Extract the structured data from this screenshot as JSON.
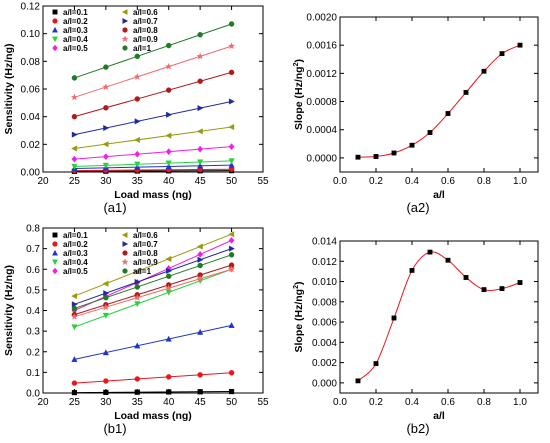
{
  "chart_data": [
    {
      "panel": "a1",
      "caption": "(a1)",
      "type": "scatter",
      "xlabel": "Load mass (ng)",
      "ylabel": "Sensitivity (Hz/ng)",
      "xlim": [
        20,
        55
      ],
      "ylim": [
        0,
        0.12
      ],
      "xticks": [
        "20",
        "25",
        "30",
        "35",
        "40",
        "45",
        "50",
        "55"
      ],
      "yticks": [
        "0.00",
        "0.02",
        "0.04",
        "0.06",
        "0.08",
        "0.10",
        "0.12"
      ],
      "legend_position": "top-left",
      "x": [
        25,
        30,
        35,
        40,
        45,
        50
      ],
      "series": [
        {
          "name": "a/l=0.1",
          "color": "#000000",
          "marker": "square",
          "fit": true,
          "values": [
            0.0005,
            0.0006,
            0.0007,
            0.0008,
            0.0009,
            0.001
          ]
        },
        {
          "name": "a/l=0.2",
          "color": "#e8161d",
          "marker": "circle",
          "fit": true,
          "values": [
            0.001,
            0.0012,
            0.0014,
            0.0016,
            0.0018,
            0.002
          ]
        },
        {
          "name": "a/l=0.3",
          "color": "#1f34c9",
          "marker": "triangle-up",
          "fit": true,
          "values": [
            0.0025,
            0.003,
            0.0035,
            0.004,
            0.0045,
            0.005
          ]
        },
        {
          "name": "a/l=0.4",
          "color": "#27d33b",
          "marker": "triangle-down",
          "fit": true,
          "values": [
            0.004,
            0.0048,
            0.0056,
            0.0064,
            0.0072,
            0.008
          ]
        },
        {
          "name": "a/l=0.5",
          "color": "#f21ee3",
          "marker": "diamond",
          "fit": true,
          "values": [
            0.0093,
            0.0111,
            0.0129,
            0.0147,
            0.0165,
            0.0183
          ]
        },
        {
          "name": "a/l=0.6",
          "color": "#9a9a0c",
          "marker": "triangle-left",
          "fit": true,
          "values": [
            0.017,
            0.0201,
            0.0232,
            0.0263,
            0.0294,
            0.0325
          ]
        },
        {
          "name": "a/l=0.7",
          "color": "#1f2a9e",
          "marker": "triangle-right",
          "fit": true,
          "values": [
            0.027,
            0.0318,
            0.0366,
            0.0414,
            0.0462,
            0.051
          ]
        },
        {
          "name": "a/l=0.8",
          "color": "#b01a1a",
          "marker": "circle",
          "fit": true,
          "values": [
            0.04,
            0.0464,
            0.0528,
            0.0592,
            0.0656,
            0.072
          ]
        },
        {
          "name": "a/l=0.9",
          "color": "#f26b6b",
          "marker": "star",
          "fit": true,
          "values": [
            0.054,
            0.0614,
            0.0688,
            0.0762,
            0.0836,
            0.091
          ]
        },
        {
          "name": "a/l=1",
          "color": "#1e7a25",
          "marker": "circle",
          "fit": true,
          "values": [
            0.068,
            0.0758,
            0.0836,
            0.0914,
            0.0992,
            0.107
          ]
        }
      ]
    },
    {
      "panel": "a2",
      "caption": "(a2)",
      "type": "line",
      "xlabel": "a/l",
      "ylabel": "Slope (Hz/ng",
      "ylabel_sup": "2",
      "ylabel_end": ")",
      "xlim": [
        0.0,
        1.1
      ],
      "ylim": [
        -0.0002,
        0.002
      ],
      "xticks": [
        "0.0",
        "0.2",
        "0.4",
        "0.6",
        "0.8",
        "1.0"
      ],
      "xtick_values": [
        0.0,
        0.2,
        0.4,
        0.6,
        0.8,
        1.0
      ],
      "yticks": [
        "0.0000",
        "0.0004",
        "0.0008",
        "0.0012",
        "0.0016",
        "0.0020"
      ],
      "ytick_values": [
        0.0,
        0.0004,
        0.0008,
        0.0012,
        0.0016,
        0.002
      ],
      "x": [
        0.1,
        0.2,
        0.3,
        0.4,
        0.5,
        0.6,
        0.7,
        0.8,
        0.9,
        1.0
      ],
      "series": [
        {
          "color": "#e8161d",
          "marker": "square",
          "values": [
            1e-05,
            2e-05,
            7e-05,
            0.00018,
            0.00036,
            0.00063,
            0.00093,
            0.00123,
            0.00148,
            0.0016
          ]
        }
      ]
    },
    {
      "panel": "b1",
      "caption": "(b1)",
      "type": "scatter",
      "xlabel": "Load mass (ng)",
      "ylabel": "Sensitivity (Hz/ng)",
      "xlim": [
        20,
        55
      ],
      "ylim": [
        0,
        0.8
      ],
      "xticks": [
        "20",
        "25",
        "30",
        "35",
        "40",
        "45",
        "50",
        "55"
      ],
      "yticks": [
        "0.0",
        "0.1",
        "0.2",
        "0.3",
        "0.4",
        "0.5",
        "0.6",
        "0.7",
        "0.8"
      ],
      "legend_position": "top-left",
      "x": [
        25,
        30,
        35,
        40,
        45,
        50
      ],
      "series": [
        {
          "name": "a/l=0.1",
          "color": "#000000",
          "marker": "square",
          "fit": true,
          "values": [
            0.002,
            0.003,
            0.004,
            0.005,
            0.006,
            0.007
          ]
        },
        {
          "name": "a/l=0.2",
          "color": "#e8161d",
          "marker": "circle",
          "fit": true,
          "values": [
            0.048,
            0.058,
            0.068,
            0.078,
            0.088,
            0.098
          ]
        },
        {
          "name": "a/l=0.3",
          "color": "#1f34c9",
          "marker": "triangle-up",
          "fit": true,
          "values": [
            0.163,
            0.196,
            0.229,
            0.262,
            0.295,
            0.328
          ]
        },
        {
          "name": "a/l=0.4",
          "color": "#27d33b",
          "marker": "triangle-down",
          "fit": true,
          "values": [
            0.32,
            0.376,
            0.432,
            0.488,
            0.544,
            0.6
          ]
        },
        {
          "name": "a/l=0.5",
          "color": "#f21ee3",
          "marker": "diamond",
          "fit": true,
          "values": [
            0.4,
            0.468,
            0.536,
            0.604,
            0.672,
            0.74
          ]
        },
        {
          "name": "a/l=0.6",
          "color": "#9a9a0c",
          "marker": "triangle-left",
          "fit": true,
          "values": [
            0.47,
            0.53,
            0.59,
            0.65,
            0.71,
            0.77
          ]
        },
        {
          "name": "a/l=0.7",
          "color": "#1f2a9e",
          "marker": "triangle-right",
          "fit": true,
          "values": [
            0.43,
            0.484,
            0.538,
            0.592,
            0.646,
            0.7
          ]
        },
        {
          "name": "a/l=0.8",
          "color": "#b01a1a",
          "marker": "circle",
          "fit": true,
          "values": [
            0.38,
            0.428,
            0.476,
            0.524,
            0.572,
            0.62
          ]
        },
        {
          "name": "a/l=0.9",
          "color": "#f26b6b",
          "marker": "star",
          "fit": true,
          "values": [
            0.37,
            0.416,
            0.462,
            0.508,
            0.554,
            0.6
          ]
        },
        {
          "name": "a/l=1",
          "color": "#1e7a25",
          "marker": "circle",
          "fit": true,
          "values": [
            0.41,
            0.462,
            0.514,
            0.566,
            0.618,
            0.67
          ]
        }
      ]
    },
    {
      "panel": "b2",
      "caption": "(b2)",
      "type": "line",
      "xlabel": "a/l",
      "ylabel": "Slope (Hz/ng",
      "ylabel_sup": "2",
      "ylabel_end": ")",
      "xlim": [
        0.0,
        1.1
      ],
      "ylim": [
        -0.001,
        0.014
      ],
      "xticks": [
        "0.0",
        "0.2",
        "0.4",
        "0.6",
        "0.8",
        "1.0"
      ],
      "xtick_values": [
        0.0,
        0.2,
        0.4,
        0.6,
        0.8,
        1.0
      ],
      "yticks": [
        "0.000",
        "0.002",
        "0.004",
        "0.006",
        "0.008",
        "0.010",
        "0.012",
        "0.014"
      ],
      "ytick_values": [
        0.0,
        0.002,
        0.004,
        0.006,
        0.008,
        0.01,
        0.012,
        0.014
      ],
      "x": [
        0.1,
        0.2,
        0.3,
        0.4,
        0.5,
        0.6,
        0.7,
        0.8,
        0.9,
        1.0
      ],
      "series": [
        {
          "color": "#e8161d",
          "marker": "square",
          "values": [
            0.0002,
            0.0019,
            0.0064,
            0.0111,
            0.0129,
            0.0121,
            0.0104,
            0.0092,
            0.0093,
            0.0099
          ]
        }
      ]
    }
  ]
}
